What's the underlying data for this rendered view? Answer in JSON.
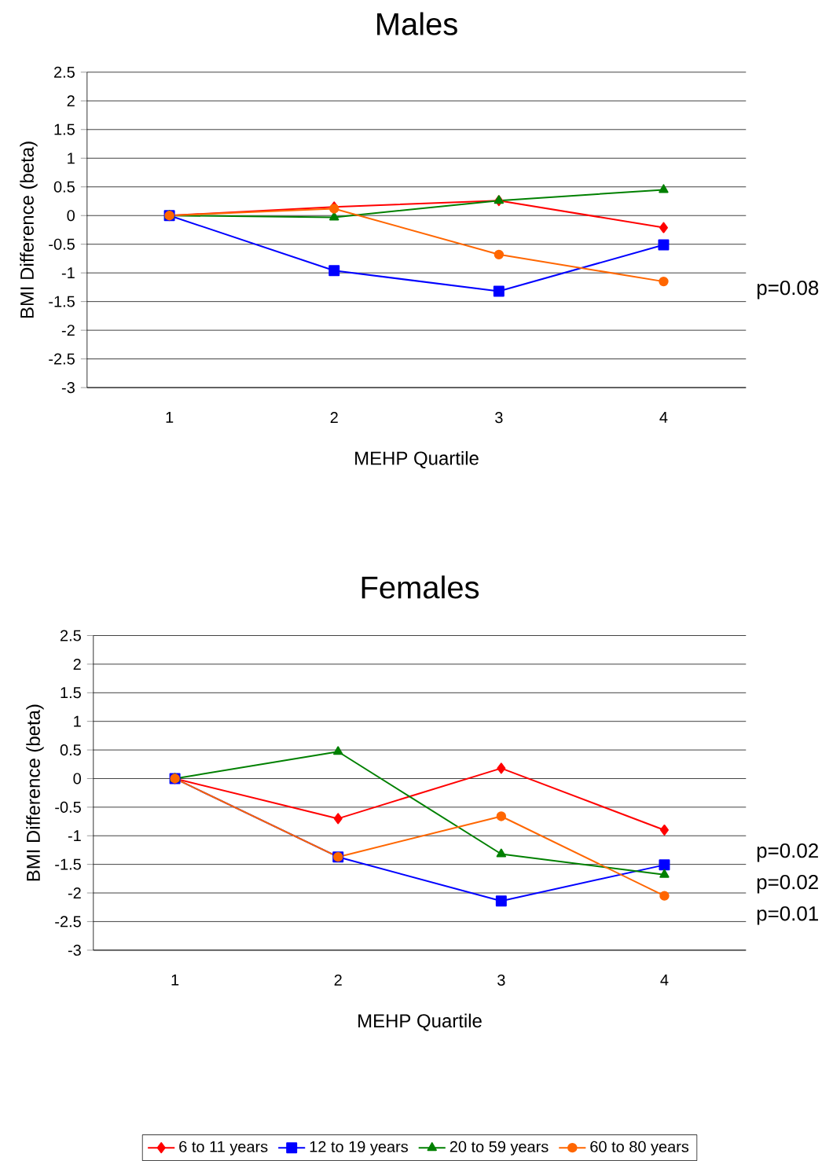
{
  "chart_data": [
    {
      "type": "line",
      "title": "Males",
      "xlabel": "MEHP Quartile",
      "ylabel": "BMI Difference (beta)",
      "categories": [
        "1",
        "2",
        "3",
        "4"
      ],
      "series": [
        {
          "color": "#ff0000",
          "marker": "diamond",
          "values": [
            0,
            0.15,
            0.26,
            -0.21
          ]
        },
        {
          "color": "#0000ff",
          "marker": "square",
          "values": [
            0,
            -0.96,
            -1.32,
            -0.51
          ]
        },
        {
          "color": "#008000",
          "marker": "triangle",
          "values": [
            0,
            -0.03,
            0.26,
            0.45
          ]
        },
        {
          "color": "#ff6600",
          "marker": "circle",
          "values": [
            0,
            0.12,
            -0.68,
            -1.15
          ]
        }
      ],
      "ylim": [
        -3,
        2.5
      ],
      "yticks": [
        2.5,
        2,
        1.5,
        1,
        0.5,
        0,
        -0.5,
        -1,
        -1.5,
        -2,
        -2.5,
        -3
      ],
      "grid": "y",
      "annotations": [
        "p=0.08"
      ]
    },
    {
      "type": "line",
      "title": "Females",
      "xlabel": "MEHP Quartile",
      "ylabel": "BMI Difference (beta)",
      "categories": [
        "1",
        "2",
        "3",
        "4"
      ],
      "series": [
        {
          "name": "6 to 11 years",
          "color": "#ff0000",
          "marker": "diamond",
          "values": [
            0,
            -0.7,
            0.18,
            -0.9
          ]
        },
        {
          "name": "12 to 19 years",
          "color": "#0000ff",
          "marker": "square",
          "values": [
            0,
            -1.37,
            -2.14,
            -1.51
          ]
        },
        {
          "name": "20 to 59 years",
          "color": "#008000",
          "marker": "triangle",
          "values": [
            0,
            0.47,
            -1.32,
            -1.68
          ]
        },
        {
          "name": "60 to 80 years",
          "color": "#ff6600",
          "marker": "circle",
          "values": [
            0,
            -1.37,
            -0.66,
            -2.05
          ]
        }
      ],
      "ylim": [
        -3,
        2.5
      ],
      "yticks": [
        2.5,
        2,
        1.5,
        1,
        0.5,
        0,
        -0.5,
        -1,
        -1.5,
        -2,
        -2.5,
        -3
      ],
      "grid": "y",
      "legend": "bottom",
      "annotations": [
        "p=0.02",
        "p=0.02",
        "p=0.01"
      ]
    }
  ]
}
